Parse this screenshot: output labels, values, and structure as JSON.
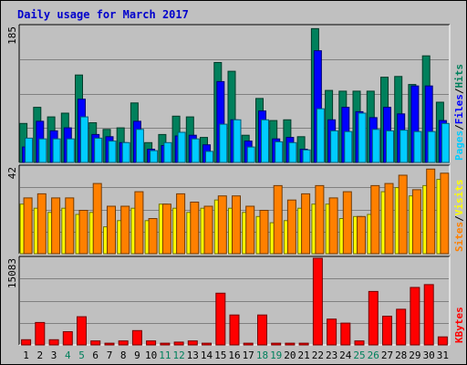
{
  "chart_data": {
    "type": "bar",
    "title": "Daily usage for March 2017",
    "days": [
      "1",
      "2",
      "3",
      "4",
      "5",
      "6",
      "7",
      "8",
      "9",
      "10",
      "11",
      "12",
      "13",
      "14",
      "15",
      "16",
      "17",
      "18",
      "19",
      "20",
      "21",
      "22",
      "23",
      "24",
      "25",
      "26",
      "27",
      "28",
      "29",
      "30",
      "31"
    ],
    "weekend_days": [
      "4",
      "5",
      "11",
      "12",
      "18",
      "19",
      "25",
      "26"
    ],
    "grid": true,
    "panels": [
      {
        "id": "hits-files-pages",
        "max_label": "185",
        "ymax": 185,
        "legend": [
          {
            "label": "Pages",
            "color": "#00ccff"
          },
          {
            "label": "/",
            "color": "#000000"
          },
          {
            "label": "Files",
            "color": "#0000ff"
          },
          {
            "label": "/",
            "color": "#000000"
          },
          {
            "label": "Hits",
            "color": "#00805c"
          }
        ],
        "series": [
          {
            "name": "Hits",
            "color": "#00805c",
            "values": [
              53,
              75,
              62,
              67,
              119,
              54,
              45,
              47,
              81,
              27,
              38,
              63,
              62,
              34,
              136,
              124,
              37,
              87,
              57,
              58,
              35,
              182,
              98,
              97,
              97,
              97,
              116,
              117,
              106,
              145,
              82
            ]
          },
          {
            "name": "Files",
            "color": "#0000ff",
            "values": [
              21,
              56,
              43,
              47,
              86,
              38,
              35,
              27,
              56,
              18,
              23,
              36,
              37,
              24,
              110,
              58,
              29,
              70,
              32,
              34,
              18,
              152,
              58,
              75,
              69,
              61,
              75,
              66,
              104,
              104,
              57
            ]
          },
          {
            "name": "Pages",
            "color": "#00ccff",
            "values": [
              33,
              32,
              32,
              32,
              62,
              33,
              29,
              27,
              45,
              16,
              27,
              41,
              32,
              15,
              52,
              58,
              21,
              58,
              28,
              27,
              17,
              73,
              43,
              42,
              67,
              45,
              43,
              44,
              42,
              42,
              53
            ]
          }
        ]
      },
      {
        "id": "visits-sites",
        "max_label": "42",
        "ymax": 42,
        "legend": [
          {
            "label": "Sites",
            "color": "#ff8000"
          },
          {
            "label": "/",
            "color": "#000000"
          },
          {
            "label": "Visits",
            "color": "#ffff00"
          }
        ],
        "series": [
          {
            "name": "Visits",
            "color": "#ffff00",
            "values": [
              24,
              22,
              20,
              22,
              19,
              20,
              13,
              16,
              22,
              16,
              24,
              22,
              20,
              22,
              26,
              22,
              20,
              18,
              15,
              16,
              22,
              24,
              24,
              17,
              18,
              19,
              30,
              32,
              28,
              33,
              36
            ]
          },
          {
            "name": "Sites",
            "color": "#ff8000",
            "values": [
              27,
              29,
              27,
              27,
              21,
              34,
              23,
              23,
              30,
              17,
              24,
              29,
              25,
              23,
              28,
              28,
              23,
              21,
              33,
              26,
              29,
              33,
              27,
              30,
              18,
              33,
              34,
              38,
              31,
              41,
              39
            ]
          }
        ]
      },
      {
        "id": "kbytes",
        "max_label": "15083",
        "ymax": 15083,
        "legend": [
          {
            "label": "KBytes",
            "color": "#ff0000"
          }
        ],
        "series": [
          {
            "name": "KBytes",
            "color": "#ff0000",
            "values": [
              900,
              3900,
              900,
              2300,
              4900,
              700,
              300,
              700,
              2500,
              700,
              300,
              500,
              700,
              300,
              9000,
              5200,
              300,
              5200,
              300,
              300,
              300,
              15083,
              4500,
              3800,
              700,
              9300,
              5000,
              6200,
              10000,
              10500,
              1400
            ]
          }
        ]
      }
    ]
  }
}
